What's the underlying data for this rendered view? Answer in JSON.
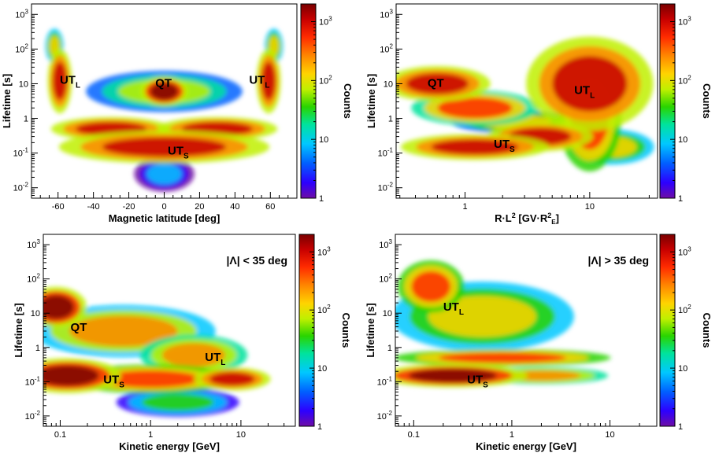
{
  "colors": {
    "palette": [
      "#6e0da6",
      "#2d00ff",
      "#0060ff",
      "#00c8ff",
      "#00e39c",
      "#29d400",
      "#bff000",
      "#ffd400",
      "#ff8a00",
      "#ff2b00",
      "#c80000",
      "#7a0000"
    ]
  },
  "chart_data": [
    {
      "type": "heatmap",
      "panel": "top-left",
      "xlabel": "Magnetic latitude [deg]",
      "ylabel": "Lifetime [s]",
      "zlabel": "Counts",
      "xscale": "linear",
      "xlim": [
        -75,
        75
      ],
      "ylim": [
        0.005,
        2000
      ],
      "zlim": [
        1,
        2000
      ],
      "xticks": [
        {
          "v": -60,
          "t": "-60"
        },
        {
          "v": -40,
          "t": "-40"
        },
        {
          "v": -20,
          "t": "-20"
        },
        {
          "v": 0,
          "t": "0"
        },
        {
          "v": 20,
          "t": "20"
        },
        {
          "v": 40,
          "t": "40"
        },
        {
          "v": 60,
          "t": "60"
        }
      ],
      "yticks": [
        {
          "v": 0.01,
          "b": "10",
          "e": "-2"
        },
        {
          "v": 0.1,
          "b": "10",
          "e": "-1"
        },
        {
          "v": 1,
          "b": "1",
          "e": ""
        },
        {
          "v": 10,
          "b": "10",
          "e": ""
        },
        {
          "v": 100,
          "b": "10",
          "e": "2"
        },
        {
          "v": 1000,
          "b": "10",
          "e": "3"
        }
      ],
      "zticks": [
        {
          "v": 1,
          "b": "1",
          "e": ""
        },
        {
          "v": 10,
          "b": "10",
          "e": ""
        },
        {
          "v": 100,
          "b": "10",
          "e": "2"
        },
        {
          "v": 1000,
          "b": "10",
          "e": "3"
        }
      ],
      "regions": [
        {
          "label": "UT",
          "sub": "L",
          "x": -59,
          "y": 10
        },
        {
          "label": "QT",
          "sub": "",
          "x": -5,
          "y": 8
        },
        {
          "label": "UT",
          "sub": "L",
          "x": 48,
          "y": 10
        },
        {
          "label": "UT",
          "sub": "S",
          "x": 2,
          "y": 0.09
        }
      ],
      "cut_label": "",
      "blobs": [
        {
          "cx": -59,
          "cy": 12,
          "rx": 4,
          "ry": 0.55,
          "level": 1000
        },
        {
          "cx": 59,
          "cy": 12,
          "rx": 4,
          "ry": 0.55,
          "level": 1000
        },
        {
          "cx": -62,
          "cy": 120,
          "rx": 3,
          "ry": 0.3,
          "level": 120
        },
        {
          "cx": 62,
          "cy": 120,
          "rx": 3,
          "ry": 0.3,
          "level": 120
        },
        {
          "cx": 0,
          "cy": 6,
          "rx": 26,
          "ry": 0.35,
          "level": 60
        },
        {
          "cx": 0,
          "cy": 6,
          "rx": 8,
          "ry": 0.25,
          "level": 1500
        },
        {
          "cx": -30,
          "cy": 0.5,
          "rx": 20,
          "ry": 0.2,
          "level": 900
        },
        {
          "cx": 30,
          "cy": 0.5,
          "rx": 20,
          "ry": 0.2,
          "level": 900
        },
        {
          "cx": 0,
          "cy": 0.15,
          "rx": 35,
          "ry": 0.28,
          "level": 1100
        },
        {
          "cx": 0,
          "cy": 0.025,
          "rx": 10,
          "ry": 0.3,
          "level": 8
        }
      ]
    },
    {
      "type": "heatmap",
      "panel": "top-right",
      "xlabel": "R·L² [GV·R²E]",
      "ylabel": "Lifetime [s]",
      "zlabel": "Counts",
      "xscale": "log",
      "xlim": [
        0.28,
        35
      ],
      "ylim": [
        0.005,
        2000
      ],
      "zlim": [
        1,
        2000
      ],
      "xticks": [
        {
          "v": 1,
          "t": "1"
        },
        {
          "v": 10,
          "t": "10"
        }
      ],
      "yticks": [
        {
          "v": 0.01,
          "b": "10",
          "e": "-2"
        },
        {
          "v": 0.1,
          "b": "10",
          "e": "-1"
        },
        {
          "v": 1,
          "b": "1",
          "e": ""
        },
        {
          "v": 10,
          "b": "10",
          "e": ""
        },
        {
          "v": 100,
          "b": "10",
          "e": "2"
        },
        {
          "v": 1000,
          "b": "10",
          "e": "3"
        }
      ],
      "zticks": [
        {
          "v": 1,
          "b": "1",
          "e": ""
        },
        {
          "v": 10,
          "b": "10",
          "e": ""
        },
        {
          "v": 100,
          "b": "10",
          "e": "2"
        },
        {
          "v": 1000,
          "b": "10",
          "e": "3"
        }
      ],
      "regions": [
        {
          "label": "QT",
          "sub": "",
          "x": 0.5,
          "y": 8
        },
        {
          "label": "UT",
          "sub": "L",
          "x": 7.5,
          "y": 5
        },
        {
          "label": "UT",
          "sub": "S",
          "x": 1.7,
          "y": 0.14
        }
      ],
      "cut_label": "",
      "blobs": [
        {
          "cx": 0.6,
          "cy": 10,
          "rx": 0.25,
          "ry": 0.3,
          "level": 1000
        },
        {
          "cx": 1.2,
          "cy": 2,
          "rx": 0.3,
          "ry": 0.3,
          "level": 400
        },
        {
          "cx": 2.5,
          "cy": 0.8,
          "rx": 0.3,
          "ry": 0.2,
          "level": 100
        },
        {
          "cx": 1.2,
          "cy": 0.15,
          "rx": 0.35,
          "ry": 0.22,
          "level": 1400
        },
        {
          "cx": 4,
          "cy": 0.3,
          "rx": 0.25,
          "ry": 0.25,
          "level": 900
        },
        {
          "cx": 10,
          "cy": 10,
          "rx": 0.3,
          "ry": 0.8,
          "level": 900
        },
        {
          "cx": 10,
          "cy": 1,
          "rx": 0.15,
          "ry": 0.9,
          "level": 700
        },
        {
          "cx": 15,
          "cy": 0.15,
          "rx": 0.2,
          "ry": 0.3,
          "level": 150
        }
      ]
    },
    {
      "type": "heatmap",
      "panel": "bottom-left",
      "xlabel": "Kinetic energy [GeV]",
      "ylabel": "Lifetime [s]",
      "zlabel": "Counts",
      "xscale": "log",
      "xlim": [
        0.065,
        40
      ],
      "ylim": [
        0.005,
        2000
      ],
      "zlim": [
        1,
        2000
      ],
      "xticks": [
        {
          "v": 0.1,
          "t": "0.1"
        },
        {
          "v": 1,
          "t": "1"
        },
        {
          "v": 10,
          "t": "10"
        }
      ],
      "yticks": [
        {
          "v": 0.01,
          "b": "10",
          "e": "-2"
        },
        {
          "v": 0.1,
          "b": "10",
          "e": "-1"
        },
        {
          "v": 1,
          "b": "1",
          "e": ""
        },
        {
          "v": 10,
          "b": "10",
          "e": ""
        },
        {
          "v": 100,
          "b": "10",
          "e": "2"
        },
        {
          "v": 1000,
          "b": "10",
          "e": "3"
        }
      ],
      "zticks": [
        {
          "v": 1,
          "b": "1",
          "e": ""
        },
        {
          "v": 10,
          "b": "10",
          "e": ""
        },
        {
          "v": 100,
          "b": "10",
          "e": "2"
        },
        {
          "v": 1000,
          "b": "10",
          "e": "3"
        }
      ],
      "regions": [
        {
          "label": "QT",
          "sub": "",
          "x": 0.13,
          "y": 3
        },
        {
          "label": "UT",
          "sub": "L",
          "x": 4,
          "y": 0.4
        },
        {
          "label": "UT",
          "sub": "S",
          "x": 0.3,
          "y": 0.09
        }
      ],
      "cut_label": "|Λ| < 35 deg",
      "blobs": [
        {
          "cx": 0.09,
          "cy": 15,
          "rx": 0.2,
          "ry": 0.35,
          "level": 1500
        },
        {
          "cx": 0.5,
          "cy": 3,
          "rx": 0.6,
          "ry": 0.45,
          "level": 200
        },
        {
          "cx": 3,
          "cy": 0.6,
          "rx": 0.35,
          "ry": 0.35,
          "level": 250
        },
        {
          "cx": 0.12,
          "cy": 0.15,
          "rx": 0.35,
          "ry": 0.3,
          "level": 1500
        },
        {
          "cx": 1,
          "cy": 0.12,
          "rx": 0.55,
          "ry": 0.25,
          "level": 600
        },
        {
          "cx": 8,
          "cy": 0.12,
          "rx": 0.25,
          "ry": 0.2,
          "level": 1200
        },
        {
          "cx": 2,
          "cy": 0.025,
          "rx": 0.4,
          "ry": 0.25,
          "level": 30
        }
      ]
    },
    {
      "type": "heatmap",
      "panel": "bottom-right",
      "xlabel": "Kinetic energy [GeV]",
      "ylabel": "Lifetime [s]",
      "zlabel": "Counts",
      "xscale": "log",
      "xlim": [
        0.065,
        30
      ],
      "ylim": [
        0.005,
        2000
      ],
      "zlim": [
        1,
        2000
      ],
      "xticks": [
        {
          "v": 0.1,
          "t": "0.1"
        },
        {
          "v": 1,
          "t": "1"
        },
        {
          "v": 10,
          "t": "10"
        }
      ],
      "yticks": [
        {
          "v": 0.01,
          "b": "10",
          "e": "-2"
        },
        {
          "v": 0.1,
          "b": "10",
          "e": "-1"
        },
        {
          "v": 1,
          "b": "1",
          "e": ""
        },
        {
          "v": 10,
          "b": "10",
          "e": ""
        },
        {
          "v": 100,
          "b": "10",
          "e": "2"
        },
        {
          "v": 1000,
          "b": "10",
          "e": "3"
        }
      ],
      "zticks": [
        {
          "v": 1,
          "b": "1",
          "e": ""
        },
        {
          "v": 10,
          "b": "10",
          "e": ""
        },
        {
          "v": 100,
          "b": "10",
          "e": "2"
        },
        {
          "v": 1000,
          "b": "10",
          "e": "3"
        }
      ],
      "regions": [
        {
          "label": "UT",
          "sub": "L",
          "x": 0.2,
          "y": 12
        },
        {
          "label": "UT",
          "sub": "S",
          "x": 0.35,
          "y": 0.09
        }
      ],
      "cut_label": "|Λ| > 35 deg",
      "blobs": [
        {
          "cx": 0.15,
          "cy": 60,
          "rx": 0.2,
          "ry": 0.45,
          "level": 500
        },
        {
          "cx": 0.5,
          "cy": 8,
          "rx": 0.55,
          "ry": 0.6,
          "level": 150
        },
        {
          "cx": 0.8,
          "cy": 0.5,
          "rx": 0.65,
          "ry": 0.15,
          "level": 700
        },
        {
          "cx": 0.25,
          "cy": 0.15,
          "rx": 0.45,
          "ry": 0.2,
          "level": 1500
        },
        {
          "cx": 2,
          "cy": 0.15,
          "rx": 0.4,
          "ry": 0.15,
          "level": 300
        }
      ]
    }
  ]
}
